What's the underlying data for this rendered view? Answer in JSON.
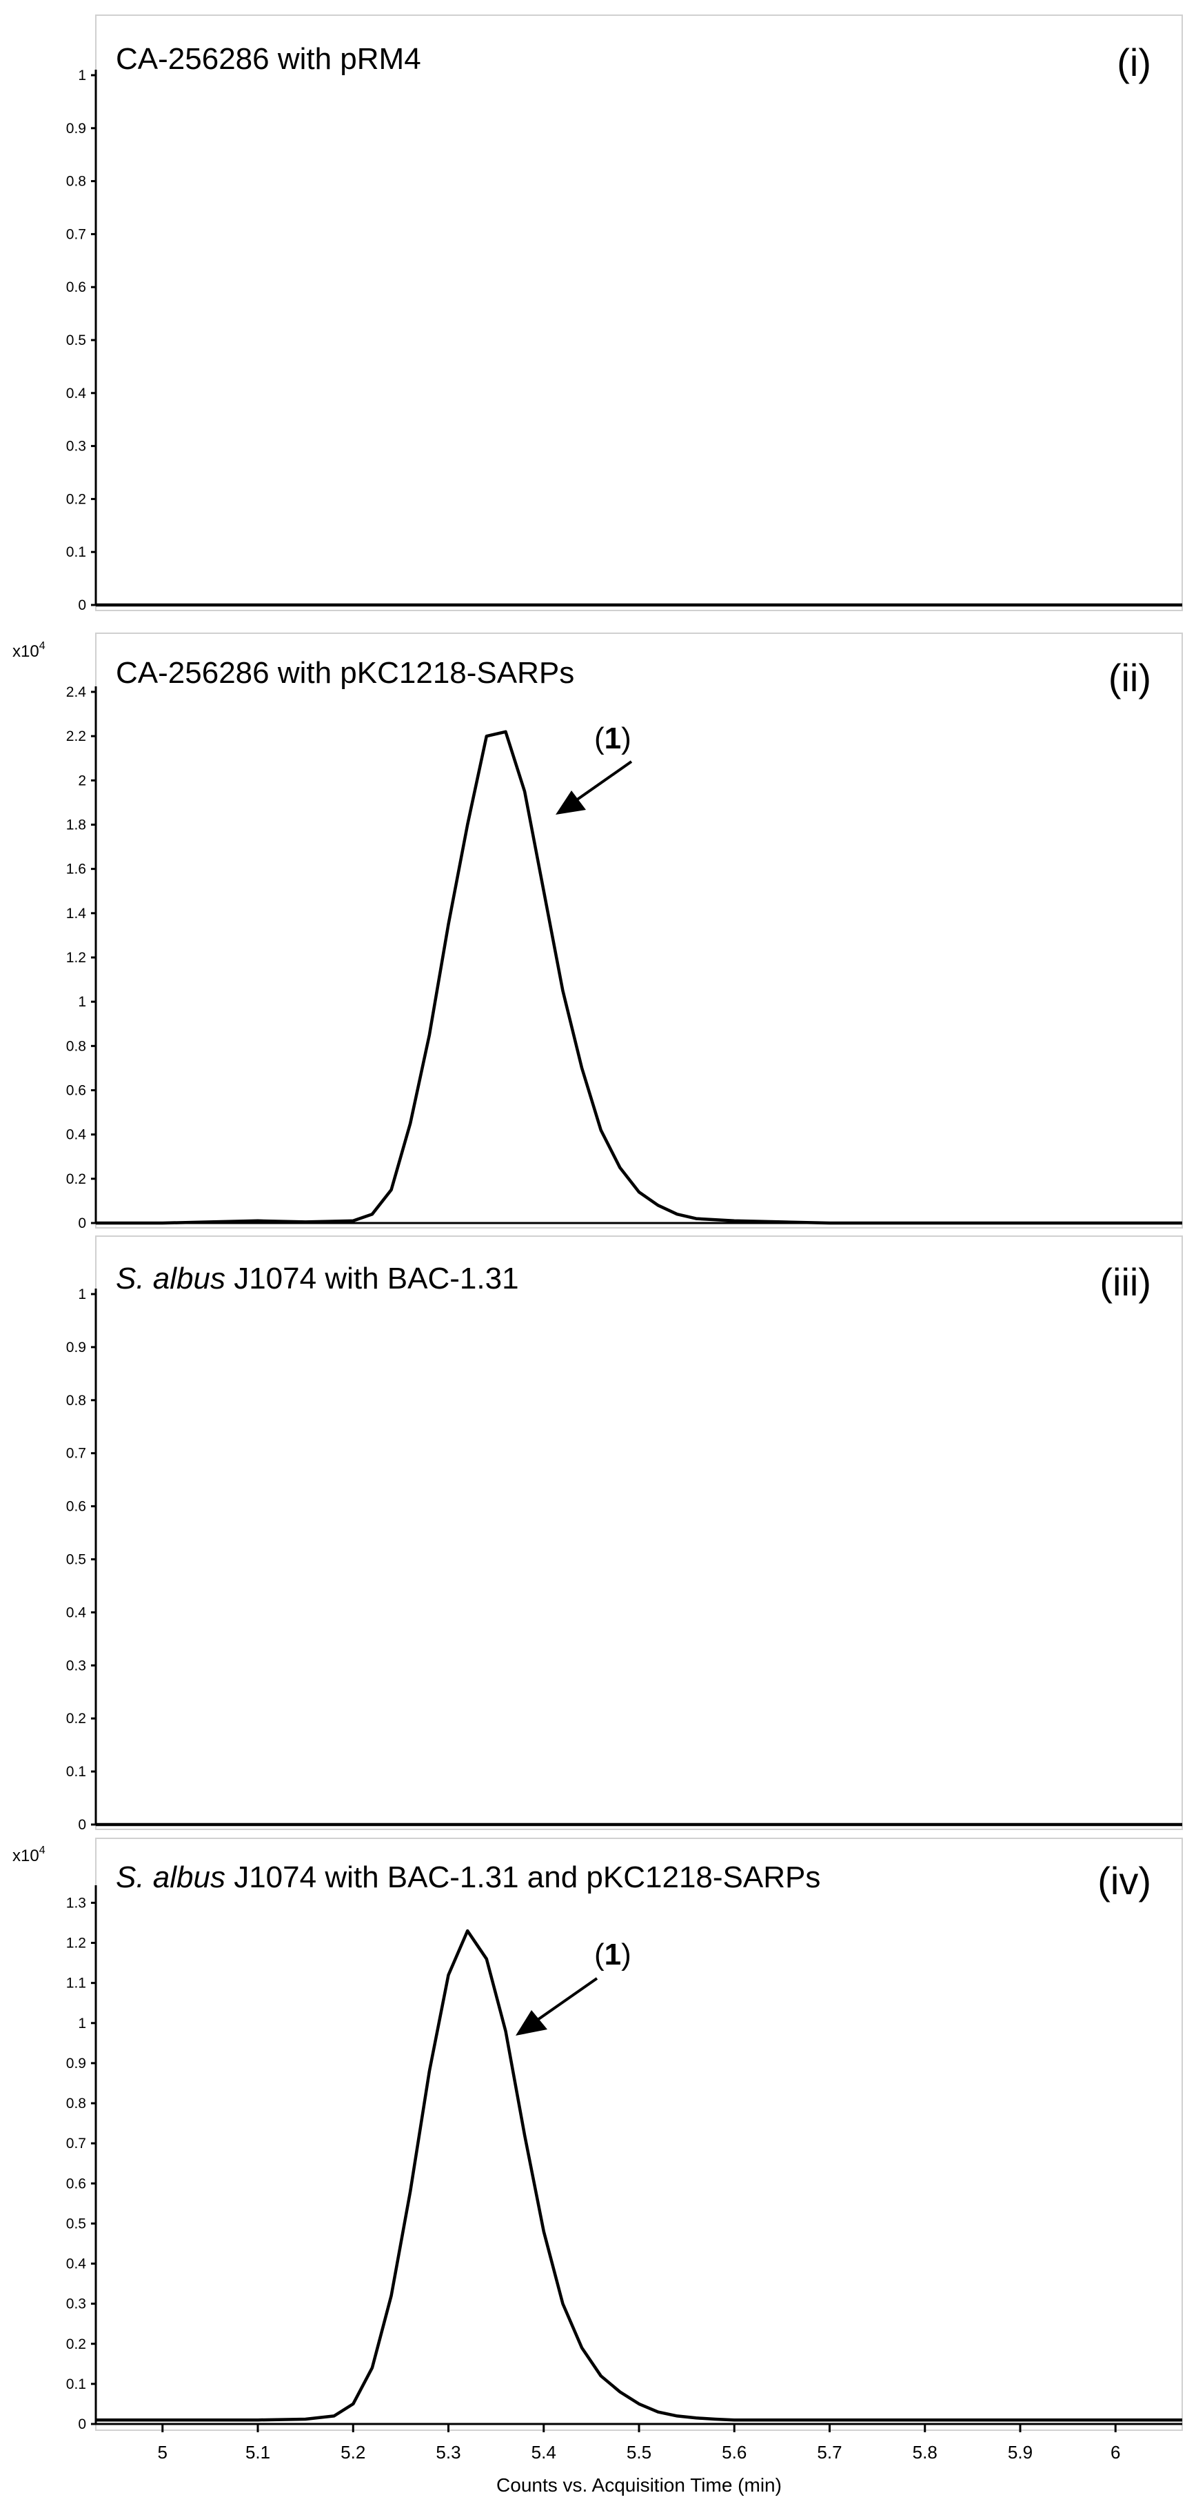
{
  "chart_data": {
    "type": "line",
    "xlabel": "Counts vs. Acquisition Time (min)",
    "xlim": [
      4.93,
      6.07
    ],
    "xticks": [
      "5",
      "5.1",
      "5.2",
      "5.3",
      "5.4",
      "5.5",
      "5.6",
      "5.7",
      "5.8",
      "5.9",
      "6"
    ],
    "panels": [
      {
        "id": "(i)",
        "title": {
          "italic": "",
          "text": "CA-256286 with pRM4"
        },
        "multiplier": {
          "base": "",
          "exp": ""
        },
        "ylim": [
          0,
          1
        ],
        "yticks": [
          "0",
          "0.1",
          "0.2",
          "0.3",
          "0.4",
          "0.5",
          "0.6",
          "0.7",
          "0.8",
          "0.9",
          "1"
        ],
        "annotation": null,
        "series": [
          {
            "x": [
              4.93,
              6.07
            ],
            "y": [
              0,
              0
            ]
          }
        ]
      },
      {
        "id": "(ii)",
        "title": {
          "italic": "",
          "text": "CA-256286 with pKC1218-SARPs"
        },
        "multiplier": {
          "base": "x10",
          "exp": "4"
        },
        "ylim": [
          0,
          2.4
        ],
        "yticks": [
          "0",
          "0.2",
          "0.4",
          "0.6",
          "0.8",
          "1",
          "1.2",
          "1.4",
          "1.6",
          "1.8",
          "2",
          "2.2",
          "2.4"
        ],
        "annotation": {
          "prefix": "(",
          "label": "1",
          "suffix": ")",
          "x": 5.4,
          "y": 1.9
        },
        "series": [
          {
            "x": [
              4.93,
              5.0,
              5.05,
              5.1,
              5.15,
              5.2,
              5.22,
              5.24,
              5.26,
              5.28,
              5.3,
              5.32,
              5.34,
              5.36,
              5.38,
              5.4,
              5.42,
              5.44,
              5.46,
              5.48,
              5.5,
              5.52,
              5.54,
              5.56,
              5.6,
              5.65,
              5.7,
              6.07
            ],
            "y": [
              0.0,
              0.0,
              0.005,
              0.01,
              0.005,
              0.01,
              0.04,
              0.15,
              0.45,
              0.85,
              1.35,
              1.8,
              2.2,
              2.22,
              1.95,
              1.5,
              1.05,
              0.7,
              0.42,
              0.25,
              0.14,
              0.08,
              0.04,
              0.02,
              0.01,
              0.005,
              0.0,
              0.0
            ]
          }
        ]
      },
      {
        "id": "(iii)",
        "title": {
          "italic": "S. albus",
          "text": " J1074 with BAC-1.31"
        },
        "multiplier": {
          "base": "",
          "exp": ""
        },
        "ylim": [
          0,
          1
        ],
        "yticks": [
          "0",
          "0.1",
          "0.2",
          "0.3",
          "0.4",
          "0.5",
          "0.6",
          "0.7",
          "0.8",
          "0.9",
          "1"
        ],
        "annotation": null,
        "series": [
          {
            "x": [
              4.93,
              6.07
            ],
            "y": [
              0,
              0
            ]
          }
        ]
      },
      {
        "id": "(iv)",
        "title": {
          "italic": "S. albus",
          "text": " J1074 with BAC-1.31 and pKC1218-SARPs"
        },
        "multiplier": {
          "base": "x10",
          "exp": "4"
        },
        "ylim": [
          0,
          1.33
        ],
        "yticks": [
          "0",
          "0.1",
          "0.2",
          "0.3",
          "0.4",
          "0.5",
          "0.6",
          "0.7",
          "0.8",
          "0.9",
          "1",
          "1.1",
          "1.2",
          "1.3"
        ],
        "annotation": {
          "prefix": "(",
          "label": "1",
          "suffix": ")",
          "x": 5.37,
          "y": 0.95
        },
        "series": [
          {
            "x": [
              4.93,
              5.0,
              5.1,
              5.15,
              5.18,
              5.2,
              5.22,
              5.24,
              5.26,
              5.28,
              5.3,
              5.32,
              5.34,
              5.36,
              5.38,
              5.4,
              5.42,
              5.44,
              5.46,
              5.48,
              5.5,
              5.52,
              5.54,
              5.56,
              5.58,
              5.6,
              5.65,
              6.07
            ],
            "y": [
              0.01,
              0.01,
              0.01,
              0.012,
              0.02,
              0.05,
              0.14,
              0.32,
              0.58,
              0.88,
              1.12,
              1.23,
              1.16,
              0.98,
              0.72,
              0.48,
              0.3,
              0.19,
              0.12,
              0.08,
              0.05,
              0.03,
              0.02,
              0.015,
              0.012,
              0.01,
              0.01,
              0.01
            ]
          }
        ]
      }
    ]
  }
}
